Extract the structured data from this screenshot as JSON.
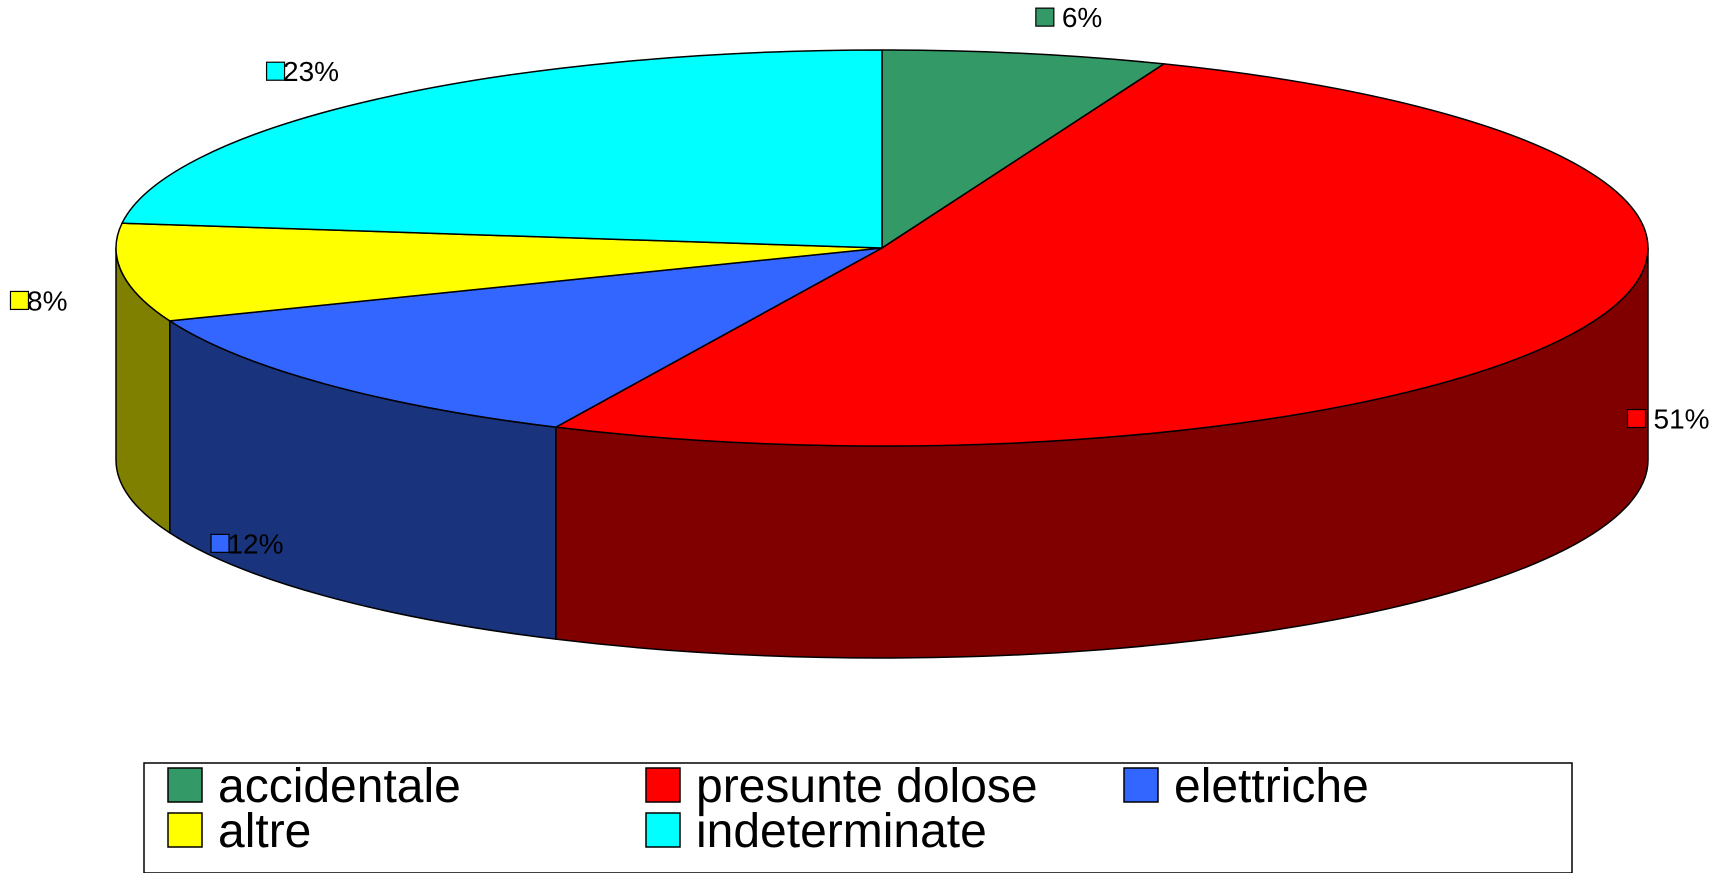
{
  "chart_data": {
    "type": "pie",
    "style": "3d",
    "slices": [
      {
        "category": "accidentale",
        "value": 6,
        "label": "6%",
        "color": "#339966",
        "side_color": "#1a4d33"
      },
      {
        "category": "presunte dolose",
        "value": 51,
        "label": "51%",
        "color": "#ff0000",
        "side_color": "#800000"
      },
      {
        "category": "elettriche",
        "value": 12,
        "label": "12%",
        "color": "#3366ff",
        "side_color": "#1a337d"
      },
      {
        "category": "altre",
        "value": 8,
        "label": "8%",
        "color": "#ffff00",
        "side_color": "#808000"
      },
      {
        "category": "indeterminate",
        "value": 23,
        "label": "23%",
        "color": "#00ffff",
        "side_color": "#008080"
      }
    ],
    "legend": {
      "placement": "bottom",
      "entries": [
        "accidentale",
        "presunte dolose",
        "elettriche",
        "altre",
        "indeterminate"
      ]
    }
  }
}
